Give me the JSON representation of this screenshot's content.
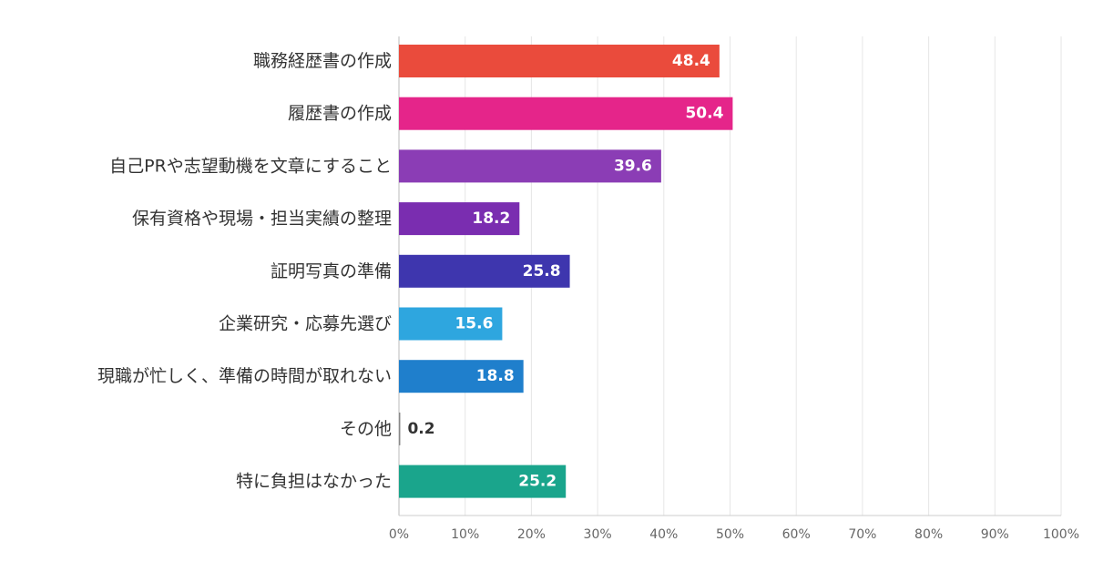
{
  "chart_data": {
    "type": "bar",
    "orientation": "horizontal",
    "title": "",
    "xlabel": "",
    "ylabel": "",
    "categories": [
      "職務経歴書の作成",
      "履歴書の作成",
      "自己PRや志望動機を文章にすること",
      "保有資格や現場・担当実績の整理",
      "証明写真の準備",
      "企業研究・応募先選び",
      "現職が忙しく、準備の時間が取れない",
      "その他",
      "特に負担はなかった"
    ],
    "values": [
      48.4,
      50.4,
      39.6,
      18.2,
      25.8,
      15.6,
      18.8,
      0.2,
      25.2
    ],
    "value_labels": [
      "48.4",
      "50.4",
      "39.6",
      "18.2",
      "25.8",
      "15.6",
      "18.8",
      "0.2",
      "25.2"
    ],
    "colors": [
      "#EA4B3C",
      "#E5258A",
      "#8B3DB5",
      "#7A2DB0",
      "#3E36AE",
      "#2EA6DF",
      "#1F7FCC",
      "#888888",
      "#1AA58C"
    ],
    "xlim": [
      0,
      100
    ],
    "xticks": [
      0,
      10,
      20,
      30,
      40,
      50,
      60,
      70,
      80,
      90,
      100
    ],
    "xtick_labels": [
      "0%",
      "10%",
      "20%",
      "30%",
      "40%",
      "50%",
      "60%",
      "70%",
      "80%",
      "90%",
      "100%"
    ],
    "grid": true,
    "legend": "none"
  }
}
